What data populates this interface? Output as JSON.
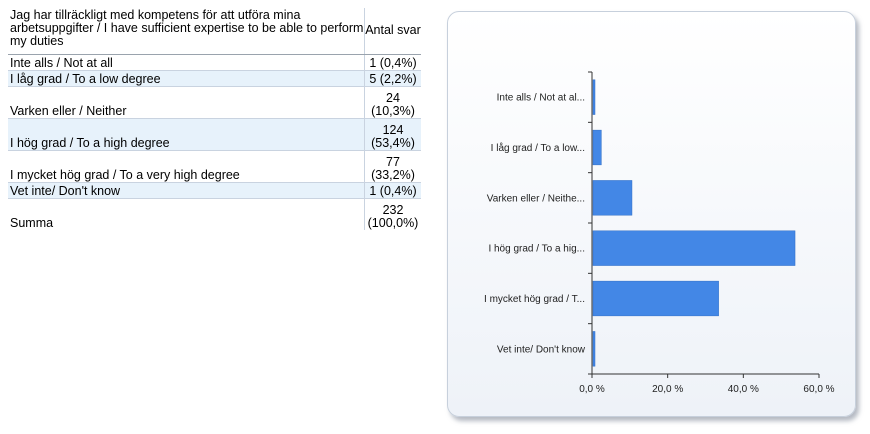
{
  "table": {
    "question": "Jag har tillräckligt med kompetens för att utföra mina arbetsuppgifter / I have sufficient expertise to be able to perform my duties",
    "count_header": "Antal svar",
    "rows": [
      {
        "label": "Inte alls / Not at all",
        "count": "1",
        "pct": "(0,4%)"
      },
      {
        "label": "I låg grad / To a low degree",
        "count": "5",
        "pct": "(2,2%)"
      },
      {
        "label": "Varken eller / Neither",
        "count": "24",
        "pct": "(10,3%)"
      },
      {
        "label": "I hög grad / To a high degree",
        "count": "124",
        "pct": "(53,4%)"
      },
      {
        "label": "I mycket hög grad / To a very high degree",
        "count": "77",
        "pct": "(33,2%)"
      },
      {
        "label": "Vet inte/ Don't know",
        "count": "1",
        "pct": "(0,4%)"
      }
    ],
    "summary": {
      "label": "Summa",
      "count": "232",
      "pct": "(100,0%)"
    }
  },
  "chart_data": {
    "type": "bar",
    "orientation": "horizontal",
    "categories": [
      "Inte alls / Not at al...",
      "I låg grad / To a low...",
      "Varken eller / Neithe...",
      "I hög grad / To a hig...",
      "I mycket hög grad / T...",
      "Vet inte/ Don't know"
    ],
    "values": [
      0.4,
      2.2,
      10.3,
      53.4,
      33.2,
      0.4
    ],
    "xlim": [
      0,
      60
    ],
    "xticks": [
      "0,0 %",
      "20,0 %",
      "40,0 %",
      "60,0 %"
    ],
    "bar_color": "#4387e6",
    "grid": false
  }
}
